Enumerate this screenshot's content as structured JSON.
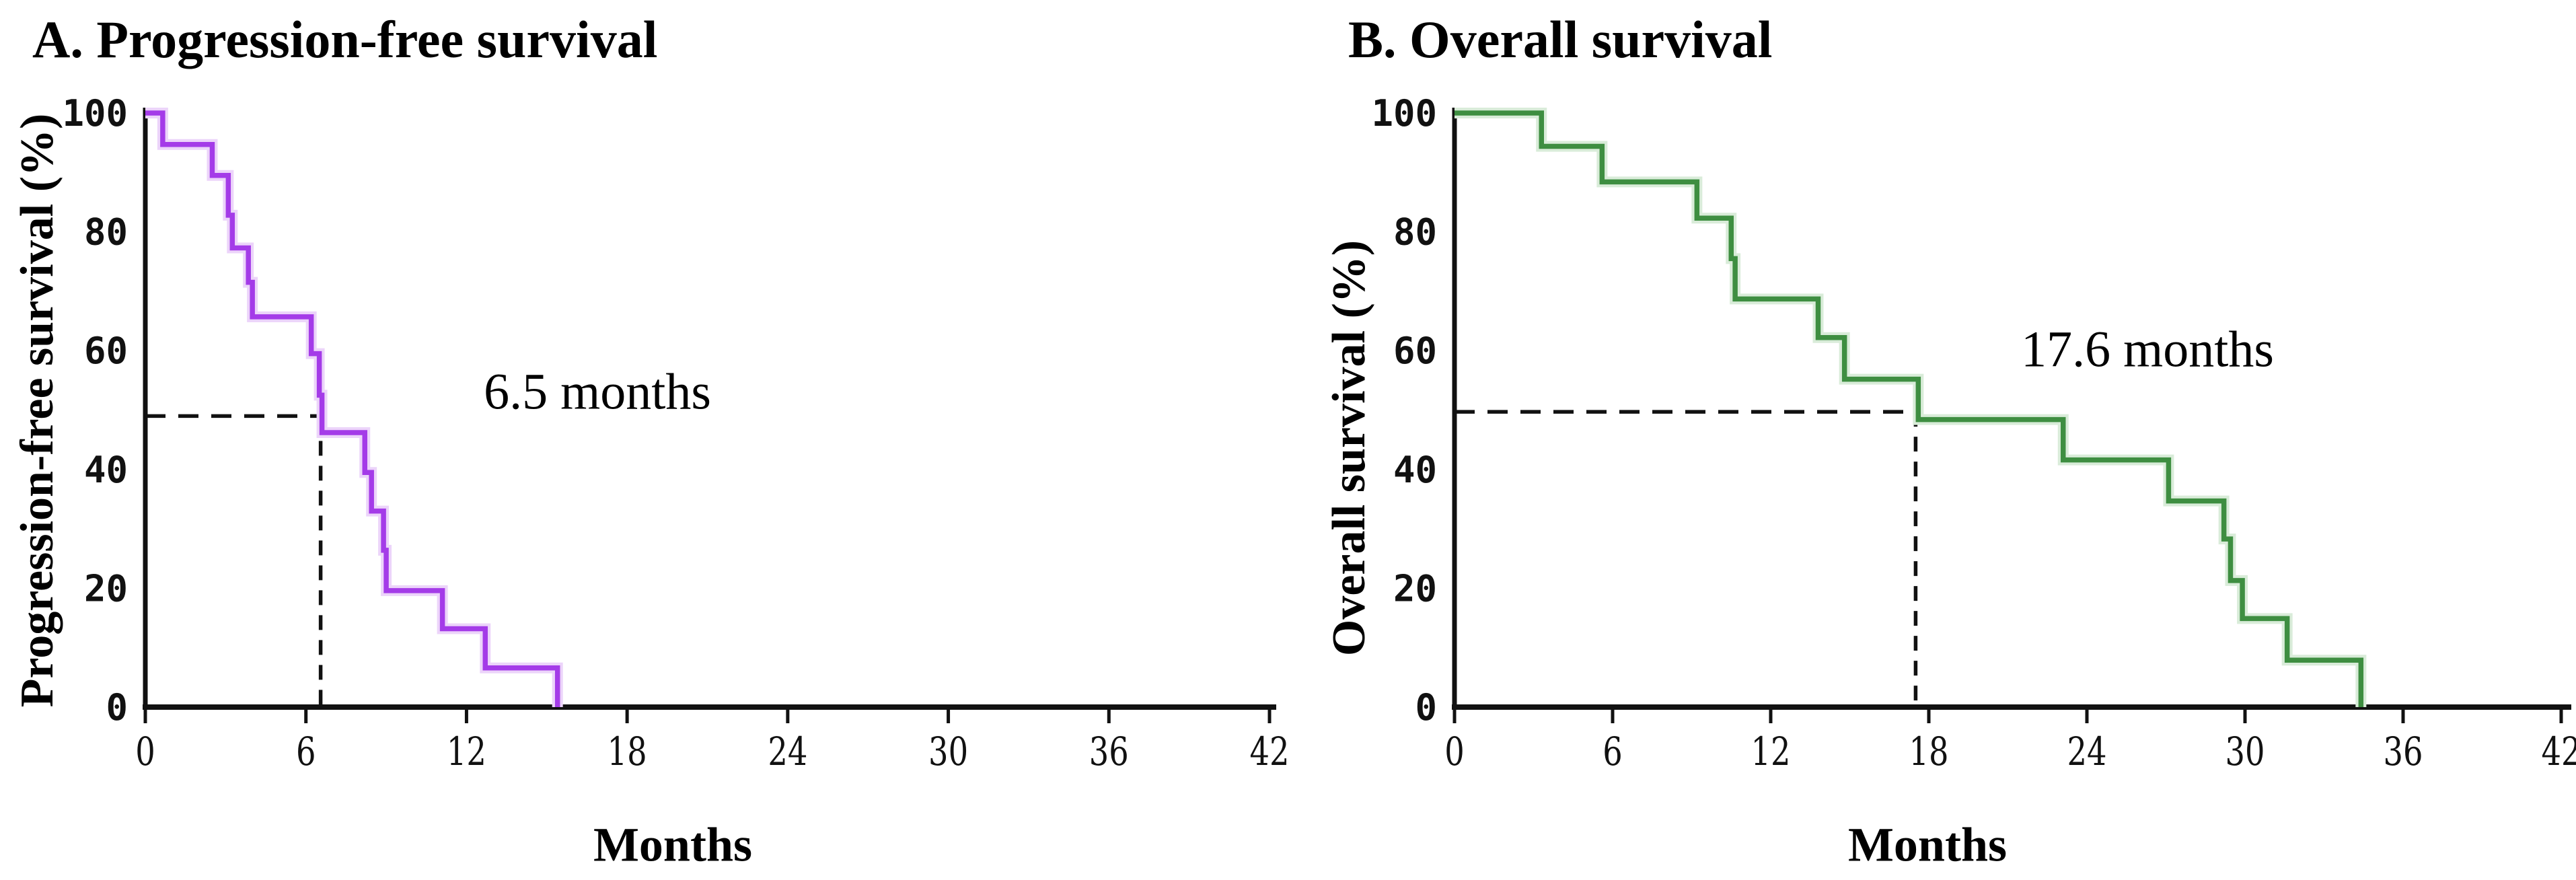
{
  "figure": {
    "background": "#ffffff",
    "axis_color": "#111111",
    "panels": [
      {
        "id": "A",
        "title": "A. Progression-free survival",
        "ylabel": "Progression-free survival (%)",
        "xlabel": "Months",
        "median_annotation": "6.5 months"
      },
      {
        "id": "B",
        "title": "B. Overall survival",
        "ylabel": "Overall survival (%)",
        "xlabel": "Months",
        "median_annotation": "17.6 months"
      }
    ]
  },
  "chart_data": [
    {
      "type": "line",
      "subtype": "kaplan_meier_step",
      "panel": "A",
      "title": "A. Progression-free survival",
      "xlabel": "Months",
      "ylabel": "Progression-free survival (%)",
      "xlim": [
        0,
        42
      ],
      "ylim": [
        0,
        100
      ],
      "x_ticks": [
        0,
        6,
        12,
        18,
        24,
        30,
        36,
        42
      ],
      "y_ticks": [
        100,
        80,
        60,
        40,
        20,
        0
      ],
      "grid": false,
      "legend": "none",
      "line_color": "#a43be8",
      "halo_color": "#ecd4fa",
      "median_months": 6.5,
      "median_label": "6.5 months",
      "median_crosshair": {
        "x": 6.55,
        "y": 49.0
      },
      "steps_time_percent": [
        [
          0,
          100
        ],
        [
          0.65,
          94.7
        ],
        [
          2.5,
          89.5
        ],
        [
          3.1,
          82.8
        ],
        [
          3.25,
          77.3
        ],
        [
          3.85,
          71.5
        ],
        [
          4.0,
          65.7
        ],
        [
          6.2,
          59.5
        ],
        [
          6.5,
          52.5
        ],
        [
          6.6,
          46.2
        ],
        [
          8.2,
          39.5
        ],
        [
          8.45,
          33.0
        ],
        [
          8.9,
          26.4
        ],
        [
          9.0,
          19.6
        ],
        [
          11.1,
          13.2
        ],
        [
          12.7,
          6.6
        ],
        [
          15.4,
          0
        ]
      ]
    },
    {
      "type": "line",
      "subtype": "kaplan_meier_step",
      "panel": "B",
      "title": "B. Overall survival",
      "xlabel": "Months",
      "ylabel": "Overall survival (%)",
      "xlim": [
        0,
        42
      ],
      "ylim": [
        0,
        100
      ],
      "x_ticks": [
        0,
        6,
        12,
        18,
        24,
        30,
        36,
        42
      ],
      "y_ticks": [
        100,
        80,
        60,
        40,
        20,
        0
      ],
      "grid": false,
      "legend": "none",
      "line_color": "#3e8e41",
      "halo_color": "#d9ecd9",
      "median_months": 17.6,
      "median_label": "17.6 months",
      "median_crosshair": {
        "x": 17.5,
        "y": 49.7
      },
      "steps_time_percent": [
        [
          0,
          100
        ],
        [
          3.3,
          94.4
        ],
        [
          5.6,
          88.4
        ],
        [
          9.2,
          82.3
        ],
        [
          10.5,
          75.5
        ],
        [
          10.65,
          68.7
        ],
        [
          13.8,
          62.2
        ],
        [
          14.8,
          55.2
        ],
        [
          17.6,
          48.4
        ],
        [
          23.1,
          41.6
        ],
        [
          27.1,
          34.7
        ],
        [
          29.2,
          28.3
        ],
        [
          29.45,
          21.3
        ],
        [
          29.9,
          14.9
        ],
        [
          31.6,
          7.9
        ],
        [
          34.4,
          0
        ]
      ]
    }
  ]
}
